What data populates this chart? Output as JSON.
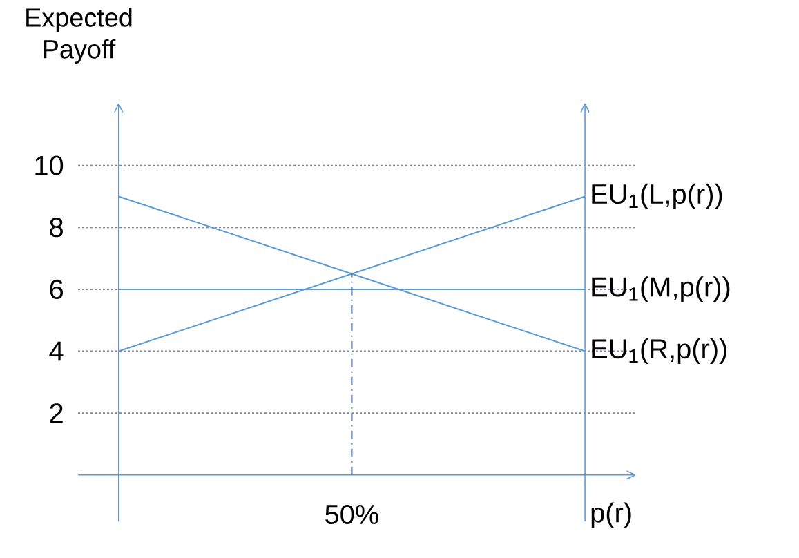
{
  "chart_data": {
    "type": "line",
    "ylabel": "Expected Payoff",
    "xlabel": "p(r)",
    "categories": [
      null,
      "50%",
      null
    ],
    "ylim": [
      -1.5,
      12
    ],
    "yticks": [
      2,
      4,
      6,
      8,
      10
    ],
    "grid": "y",
    "ref_lines": [
      {
        "axis": "y",
        "value": 0,
        "color": "#5b9bd5"
      }
    ],
    "series": [
      {
        "name": "EU$_{1}$(L,p(r))",
        "color": "#5b9bd5",
        "values": [
          4,
          6.5,
          9
        ]
      },
      {
        "name": "EU$_{1}$(M,p(r))",
        "color": "#5b9bd5",
        "values": [
          6,
          6,
          6
        ]
      },
      {
        "name": "EU$_{1}$(R,p(r))",
        "color": "#5b9bd5",
        "values": [
          9,
          6.5,
          4
        ]
      },
      {
        "color": "#3a5f85",
        "x": [
          "50%",
          "50%"
        ],
        "values": [
          0,
          6.5
        ],
        "line_style": "dashed"
      }
    ]
  }
}
